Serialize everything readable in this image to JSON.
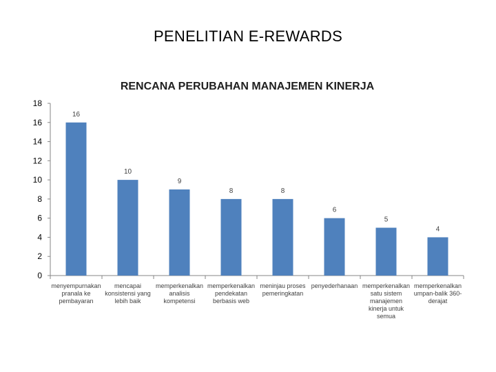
{
  "slide": {
    "title": "PENELITIAN E-REWARDS"
  },
  "chart_data": {
    "type": "bar",
    "title": "RENCANA PERUBAHAN MANAJEMEN KINERJA",
    "xlabel": "",
    "ylabel": "",
    "ylim": [
      0,
      18
    ],
    "yticks": [
      0,
      2,
      4,
      6,
      8,
      10,
      12,
      14,
      16,
      18
    ],
    "grid": false,
    "bar_color": "#4f81bd",
    "categories": [
      [
        "menyempurnakan",
        "pranala ke",
        "pembayaran"
      ],
      [
        "mencapai",
        "konsistensi yang",
        "lebih baik"
      ],
      [
        "memperkenalkan",
        "analisis",
        "kompetensi"
      ],
      [
        "memperkenalkan",
        "pendekatan",
        "berbasis web"
      ],
      [
        "meninjau proses",
        "pemeringkatan"
      ],
      [
        "penyederhanaan"
      ],
      [
        "memperkenalkan",
        "satu sistem",
        "manajemen",
        "kinerja untuk",
        "semua"
      ],
      [
        "memperkenalkan",
        "umpan-balik 360-",
        "derajat"
      ]
    ],
    "values": [
      16,
      10,
      9,
      8,
      8,
      6,
      5,
      4
    ]
  }
}
